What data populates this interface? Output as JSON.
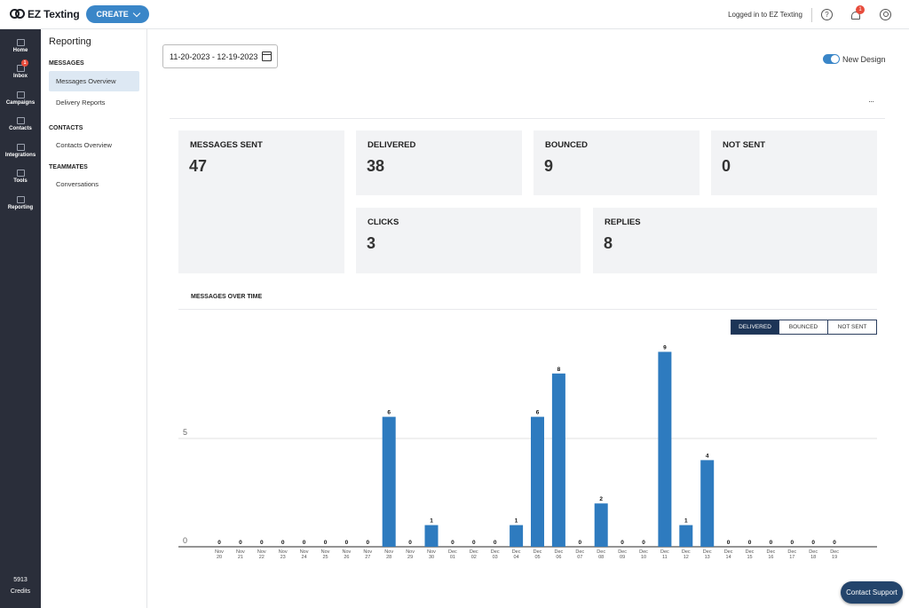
{
  "brand": {
    "name": "EZ Texting",
    "create_label": "CREATE"
  },
  "header": {
    "logged_in": "Logged in to EZ Texting",
    "notifications_count": "1"
  },
  "rail": {
    "items": [
      {
        "label": "Home",
        "icon": "home-icon"
      },
      {
        "label": "Inbox",
        "icon": "inbox-icon",
        "badge": "1"
      },
      {
        "label": "Campaigns",
        "icon": "flag-icon"
      },
      {
        "label": "Contacts",
        "icon": "contacts-icon"
      },
      {
        "label": "Integrations",
        "icon": "integrations-icon"
      },
      {
        "label": "Tools",
        "icon": "tools-icon"
      },
      {
        "label": "Reporting",
        "icon": "chart-icon"
      }
    ],
    "credits_value": "5913",
    "credits_label": "Credits"
  },
  "subnav": {
    "title": "Reporting",
    "sections": [
      {
        "heading": "MESSAGES",
        "links": [
          "Messages Overview",
          "Delivery Reports"
        ]
      },
      {
        "heading": "CONTACTS",
        "links": [
          "Contacts Overview"
        ]
      },
      {
        "heading": "TEAMMATES",
        "links": [
          "Conversations"
        ]
      }
    ],
    "active": "Messages Overview"
  },
  "main": {
    "date_range": "11-20-2023 - 12-19-2023",
    "toggle_label": "New Design",
    "more_label": "···",
    "cards": [
      {
        "label": "MESSAGES SENT",
        "value": "47"
      },
      {
        "label": "DELIVERED",
        "value": "38"
      },
      {
        "label": "BOUNCED",
        "value": "9"
      },
      {
        "label": "NOT SENT",
        "value": "0"
      },
      {
        "label": "CLICKS",
        "value": "3"
      },
      {
        "label": "REPLIES",
        "value": "8"
      }
    ],
    "chart_title": "MESSAGES OVER TIME",
    "filters": [
      "DELIVERED",
      "BOUNCED",
      "NOT SENT"
    ],
    "active_filter": "DELIVERED",
    "support_label": "Contact Support"
  },
  "colors": {
    "bar": "#2e7bbf",
    "rail": "#2a2e3a",
    "accent": "#3a86c8"
  },
  "chart_data": {
    "type": "bar",
    "categories": [
      "Nov 20",
      "Nov 21",
      "Nov 22",
      "Nov 23",
      "Nov 24",
      "Nov 25",
      "Nov 26",
      "Nov 27",
      "Nov 28",
      "Nov 29",
      "Nov 30",
      "Dec 01",
      "Dec 02",
      "Dec 03",
      "Dec 04",
      "Dec 05",
      "Dec 06",
      "Dec 07",
      "Dec 08",
      "Dec 09",
      "Dec 10",
      "Dec 11",
      "Dec 12",
      "Dec 13",
      "Dec 14",
      "Dec 15",
      "Dec 16",
      "Dec 17",
      "Dec 18",
      "Dec 19"
    ],
    "values": [
      0,
      0,
      0,
      0,
      0,
      0,
      0,
      0,
      6,
      0,
      1,
      0,
      0,
      0,
      1,
      6,
      8,
      0,
      2,
      0,
      0,
      9,
      1,
      4,
      0,
      0,
      0,
      0,
      0,
      0
    ],
    "yticks": [
      0,
      5
    ],
    "ylim": [
      0,
      10
    ],
    "grid": true
  }
}
